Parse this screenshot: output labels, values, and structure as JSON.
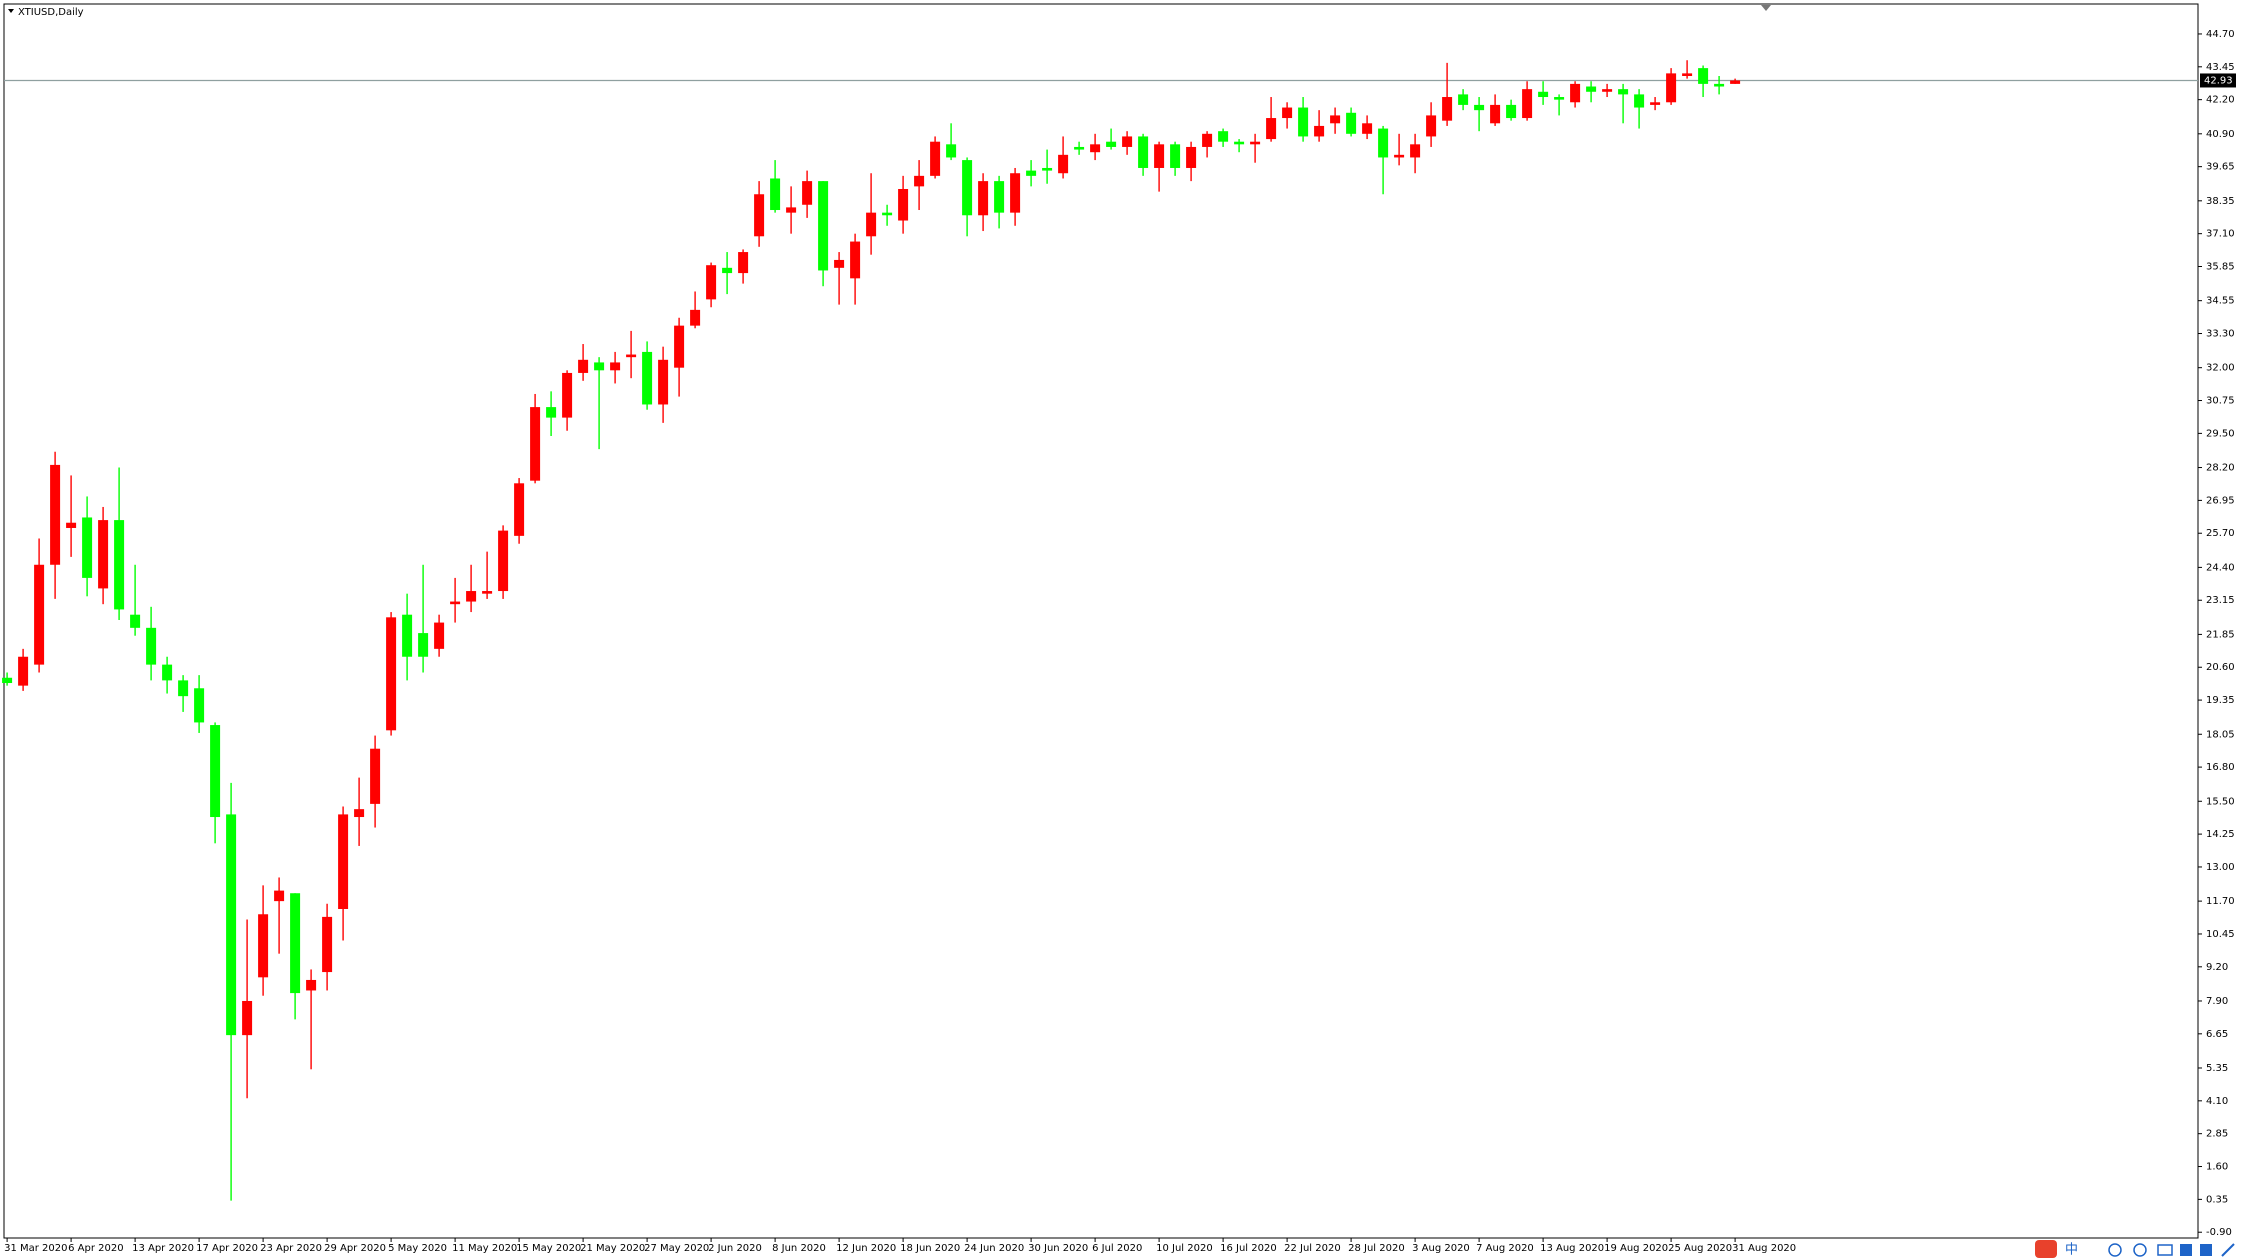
{
  "chart_data": {
    "type": "candlestick",
    "title": "XTIUSD,Daily",
    "categories": [
      "31 Mar 2020",
      null,
      null,
      null,
      "6 Apr 2020",
      null,
      null,
      null,
      "13 Apr 2020",
      null,
      null,
      null,
      "17 Apr 2020",
      null,
      null,
      null,
      "23 Apr 2020",
      null,
      null,
      null,
      "29 Apr 2020",
      null,
      null,
      null,
      "5 May 2020",
      null,
      null,
      null,
      "11 May 2020",
      null,
      null,
      null,
      "15 May 2020",
      null,
      null,
      null,
      "21 May 2020",
      null,
      null,
      null,
      "27 May 2020",
      null,
      null,
      null,
      "2 Jun 2020",
      null,
      null,
      null,
      "8 Jun 2020",
      null,
      null,
      null,
      "12 Jun 2020",
      null,
      null,
      null,
      "18 Jun 2020",
      null,
      null,
      null,
      "24 Jun 2020",
      null,
      null,
      null,
      "30 Jun 2020",
      null,
      null,
      null,
      "6 Jul 2020",
      null,
      null,
      null,
      "10 Jul 2020",
      null,
      null,
      null,
      "16 Jul 2020",
      null,
      null,
      null,
      "22 Jul 2020",
      null,
      null,
      null,
      "28 Jul 2020",
      null,
      null,
      null,
      "3 Aug 2020",
      null,
      null,
      null,
      "7 Aug 2020",
      null,
      null,
      null,
      "13 Aug 2020",
      null,
      null,
      null,
      "19 Aug 2020",
      null,
      null,
      null,
      "25 Aug 2020",
      null,
      null,
      null,
      "31 Aug 2020"
    ],
    "open": [
      20.2,
      19.9,
      20.7,
      24.5,
      25.9,
      26.3,
      23.6,
      26.2,
      22.6,
      22.1,
      20.7,
      20.1,
      19.8,
      18.4,
      15.0,
      6.6,
      8.8,
      11.7,
      12.0,
      8.3,
      9.0,
      11.4,
      14.9,
      15.4,
      18.2,
      22.6,
      21.9,
      21.3,
      23.0,
      23.1,
      23.4,
      23.5,
      25.6,
      27.7,
      30.5,
      30.1,
      31.8,
      32.2,
      31.9,
      32.4,
      32.6,
      30.6,
      32.0,
      33.6,
      34.6,
      35.8,
      35.6,
      37.0,
      39.2,
      37.9,
      38.2,
      39.1,
      35.8,
      35.4,
      37.0,
      37.9,
      37.6,
      38.9,
      39.3,
      40.5,
      39.9,
      37.8,
      39.1,
      37.9,
      39.5,
      39.6,
      39.4,
      40.4,
      40.2,
      40.6,
      40.4,
      40.8,
      39.6,
      40.5,
      39.6,
      40.4,
      41.0,
      40.6,
      40.5,
      40.7,
      41.5,
      41.9,
      40.8,
      41.3,
      41.7,
      40.9,
      41.1,
      40.0,
      40.0,
      40.8,
      41.4,
      42.4,
      42.0,
      41.3,
      42.0,
      41.5,
      42.5,
      42.3,
      42.1,
      42.7,
      42.5,
      42.6,
      42.4,
      42.0,
      42.1,
      43.1,
      43.4,
      42.8,
      42.8
    ],
    "high": [
      20.4,
      21.3,
      25.5,
      28.8,
      27.9,
      27.1,
      26.7,
      28.2,
      24.5,
      22.9,
      21.0,
      20.3,
      20.3,
      18.5,
      16.2,
      11.0,
      12.3,
      12.6,
      12.0,
      9.1,
      11.6,
      15.3,
      16.4,
      18.0,
      22.7,
      23.4,
      24.5,
      22.6,
      24.0,
      24.5,
      25.0,
      26.0,
      27.8,
      31.0,
      31.1,
      31.9,
      32.9,
      32.4,
      32.6,
      33.4,
      33.0,
      32.8,
      33.9,
      34.9,
      36.0,
      36.4,
      36.5,
      39.1,
      39.9,
      38.9,
      39.5,
      39.1,
      36.4,
      37.1,
      39.4,
      38.2,
      39.3,
      39.9,
      40.8,
      41.3,
      40.0,
      39.4,
      39.3,
      39.6,
      39.9,
      40.3,
      40.8,
      40.6,
      40.9,
      41.1,
      41.0,
      40.9,
      40.6,
      40.6,
      40.6,
      41.0,
      41.1,
      40.7,
      40.9,
      42.3,
      42.1,
      42.3,
      41.8,
      41.9,
      41.9,
      41.6,
      41.2,
      40.9,
      40.9,
      42.1,
      43.6,
      42.6,
      42.3,
      42.4,
      42.2,
      42.9,
      42.9,
      42.4,
      42.9,
      42.9,
      42.8,
      42.8,
      42.6,
      42.3,
      43.4,
      43.7,
      43.5,
      43.1,
      43.0
    ],
    "low": [
      19.9,
      19.7,
      20.4,
      23.2,
      24.8,
      23.3,
      23.0,
      22.4,
      21.8,
      20.1,
      19.6,
      18.9,
      18.1,
      13.9,
      0.3,
      4.2,
      8.1,
      9.7,
      7.2,
      5.3,
      8.3,
      10.2,
      13.8,
      14.5,
      18.0,
      20.1,
      20.4,
      21.0,
      22.3,
      22.7,
      23.2,
      23.2,
      25.3,
      27.6,
      29.4,
      29.6,
      31.5,
      28.9,
      31.4,
      31.6,
      30.4,
      29.9,
      30.9,
      33.5,
      34.3,
      34.8,
      35.2,
      36.6,
      37.9,
      37.1,
      37.7,
      35.1,
      34.4,
      34.4,
      36.3,
      37.4,
      37.1,
      38.0,
      39.2,
      39.9,
      37.0,
      37.2,
      37.3,
      37.4,
      38.9,
      39.0,
      39.2,
      40.1,
      39.9,
      40.3,
      40.1,
      39.3,
      38.7,
      39.3,
      39.1,
      40.0,
      40.4,
      40.2,
      39.8,
      40.6,
      41.1,
      40.6,
      40.6,
      40.9,
      40.8,
      40.7,
      38.6,
      39.7,
      39.4,
      40.4,
      41.2,
      41.8,
      41.0,
      41.2,
      41.4,
      41.4,
      42.0,
      41.6,
      41.9,
      42.1,
      42.3,
      41.3,
      41.1,
      41.8,
      42.0,
      43.0,
      42.3,
      42.4,
      42.8
    ],
    "close": [
      20.0,
      21.0,
      24.5,
      28.3,
      26.1,
      24.0,
      26.2,
      22.8,
      22.1,
      20.7,
      20.1,
      19.5,
      18.5,
      14.9,
      6.6,
      7.9,
      11.2,
      12.1,
      8.2,
      8.7,
      11.1,
      15.0,
      15.2,
      17.5,
      22.5,
      21.0,
      21.0,
      22.3,
      23.1,
      23.5,
      23.5,
      25.8,
      27.6,
      30.5,
      30.1,
      31.8,
      32.3,
      31.9,
      32.2,
      32.5,
      30.6,
      32.3,
      33.6,
      34.2,
      35.9,
      35.6,
      36.4,
      38.6,
      38.0,
      38.1,
      39.1,
      35.7,
      36.1,
      36.8,
      37.9,
      37.8,
      38.8,
      39.3,
      40.6,
      40.0,
      37.8,
      39.1,
      37.9,
      39.4,
      39.3,
      39.5,
      40.1,
      40.3,
      40.5,
      40.4,
      40.8,
      39.6,
      40.5,
      39.6,
      40.4,
      40.9,
      40.6,
      40.5,
      40.6,
      41.5,
      41.9,
      40.8,
      41.2,
      41.6,
      40.9,
      41.3,
      40.0,
      40.1,
      40.5,
      41.6,
      42.3,
      42.0,
      41.8,
      42.0,
      41.5,
      42.6,
      42.3,
      42.2,
      42.8,
      42.5,
      42.6,
      42.4,
      41.9,
      42.1,
      43.2,
      43.2,
      42.8,
      42.7,
      42.93
    ],
    "up_color": "#ff0000",
    "down_color": "#00ff00",
    "price_line_color": "#8fa0a0",
    "current_price": 42.93,
    "ylim": [
      -1.12,
      45.84
    ],
    "yticks": [
      {
        "value": 44.7,
        "label": "44.70"
      },
      43.45,
      {
        "value": 42.2,
        "label": "42.20"
      },
      {
        "value": 40.9,
        "label": "40.90"
      },
      39.65,
      38.35,
      {
        "value": 37.1,
        "label": "37.10"
      },
      35.85,
      34.55,
      {
        "value": 33.3,
        "label": "33.30"
      },
      {
        "value": 32,
        "label": "32.00"
      },
      30.75,
      {
        "value": 29.5,
        "label": "29.50"
      },
      {
        "value": 28.2,
        "label": "28.20"
      },
      26.95,
      {
        "value": 25.7,
        "label": "25.70"
      },
      {
        "value": 24.4,
        "label": "24.40"
      },
      23.15,
      21.85,
      {
        "value": 20.6,
        "label": "20.60"
      },
      19.35,
      18.05,
      {
        "value": 16.8,
        "label": "16.80"
      },
      {
        "value": 15.5,
        "label": "15.50"
      },
      14.25,
      {
        "value": 13,
        "label": "13.00"
      },
      {
        "value": 11.7,
        "label": "11.70"
      },
      10.45,
      {
        "value": 9.2,
        "label": "9.20"
      },
      {
        "value": 7.9,
        "label": "7.90"
      },
      6.65,
      5.35,
      {
        "value": 4.1,
        "label": "4.10"
      },
      2.85,
      {
        "value": 1.6,
        "label": "1.60"
      },
      0.35,
      {
        "value": -0.9,
        "label": "-0.90"
      }
    ],
    "grid": false
  },
  "ime": {
    "label": "中"
  }
}
